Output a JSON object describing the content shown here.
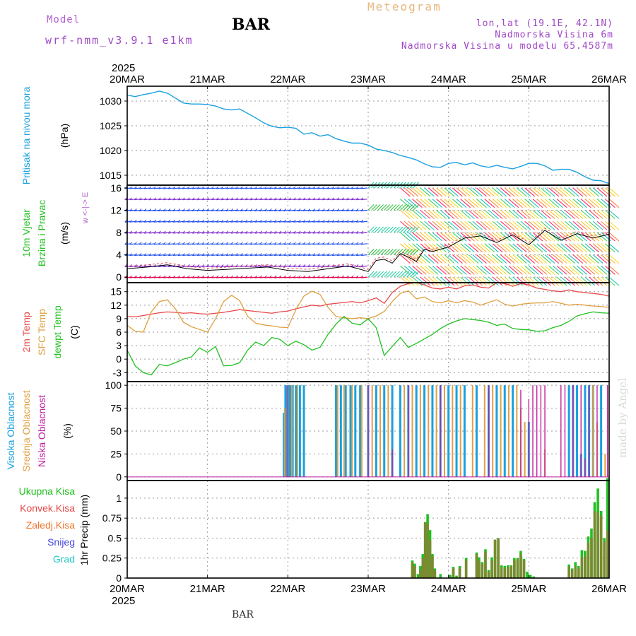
{
  "header": {
    "model_label": "Model",
    "model_name": "wrf-nmm_v3.9.1  e1km",
    "station": "BAR",
    "product": "Meteogram",
    "coords": "lon,lat (19.1E, 42.1N)",
    "elevation": "Nadmorska Visina 6m",
    "model_elevation": "Nadmorska Visina u modelu 65.4587m"
  },
  "footer_station": "BAR",
  "watermark": "made by Angel",
  "time_axis": {
    "year": "2025",
    "labels": [
      "20MAR",
      "21MAR",
      "22MAR",
      "23MAR",
      "24MAR",
      "25MAR",
      "26MAR"
    ]
  },
  "colors": {
    "pressure": "#1aa0e0",
    "wind_black": "#000000",
    "temp2m": "#e84848",
    "sfc_temp": "#e0a040",
    "dewpt": "#20c020",
    "cloud_high": "#1aa0e0",
    "cloud_mid": "#e0a040",
    "cloud_low": "#c020a0",
    "rain_total": "#20c020",
    "rain_conv": "#e84848",
    "rain_frz": "#f07830",
    "snow": "#4848e0",
    "hail": "#20c8c0"
  },
  "chart_data": [
    {
      "type": "line",
      "name": "pressure",
      "ylabel_main": "Pritisak na nivou mora",
      "ylabel_unit": "(hPa)",
      "ylim": [
        1013,
        1033
      ],
      "yticks": [
        1015,
        1020,
        1025,
        1030
      ],
      "x_days": [
        0,
        0.1,
        0.2,
        0.3,
        0.4,
        0.5,
        0.6,
        0.7,
        0.8,
        0.9,
        1.0,
        1.1,
        1.2,
        1.3,
        1.4,
        1.5,
        1.6,
        1.7,
        1.8,
        1.9,
        2.0,
        2.1,
        2.2,
        2.3,
        2.4,
        2.5,
        2.6,
        2.7,
        2.8,
        2.9,
        3.0,
        3.1,
        3.2,
        3.3,
        3.4,
        3.5,
        3.6,
        3.7,
        3.8,
        3.9,
        4.0,
        4.1,
        4.2,
        4.3,
        4.4,
        4.5,
        4.6,
        4.7,
        4.8,
        4.9,
        5.0,
        5.1,
        5.2,
        5.3,
        5.4,
        5.5,
        5.6,
        5.7,
        5.8,
        5.9,
        6.0
      ],
      "values": [
        1031.2,
        1030.9,
        1031.3,
        1031.6,
        1032.0,
        1031.6,
        1030.6,
        1029.6,
        1029.4,
        1029.4,
        1029.3,
        1029.0,
        1028.4,
        1028.2,
        1028.4,
        1027.5,
        1026.6,
        1025.6,
        1024.9,
        1024.6,
        1024.7,
        1024.5,
        1023.3,
        1023.6,
        1022.9,
        1023.2,
        1022.4,
        1021.9,
        1021.5,
        1021.5,
        1021.1,
        1020.3,
        1020.0,
        1019.6,
        1019.0,
        1018.6,
        1018.1,
        1017.3,
        1016.7,
        1016.6,
        1017.4,
        1017.6,
        1017.1,
        1017.5,
        1016.9,
        1016.6,
        1017.0,
        1016.6,
        1016.3,
        1016.8,
        1017.4,
        1017.4,
        1016.9,
        1016.0,
        1016.2,
        1016.2,
        1015.6,
        1014.7,
        1014.0,
        1013.9,
        1013.3
      ]
    },
    {
      "type": "line",
      "name": "wind",
      "ylabel_main": "10m Vjetar",
      "ylabel_sub": "Brzina i Pravac",
      "ylabel_unit": "(m/s)",
      "compass": "w <-|-> E",
      "ylim": [
        -1,
        16.5
      ],
      "yticks": [
        0,
        4,
        8,
        12,
        16
      ],
      "x_days": [
        0,
        0.25,
        0.5,
        0.75,
        1.0,
        1.25,
        1.5,
        1.75,
        2.0,
        2.25,
        2.5,
        2.75,
        3.0,
        3.1,
        3.2,
        3.3,
        3.4,
        3.5,
        3.6,
        3.7,
        3.8,
        4.0,
        4.2,
        4.4,
        4.6,
        4.8,
        5.0,
        5.2,
        5.4,
        5.6,
        5.8,
        6.0
      ],
      "values": [
        1.5,
        1.8,
        2.2,
        1.5,
        1.2,
        1.4,
        1.6,
        1.8,
        1.2,
        1.0,
        1.5,
        2.0,
        1.0,
        3.0,
        3.2,
        2.5,
        4.2,
        3.6,
        2.8,
        5.0,
        4.6,
        5.4,
        7.0,
        7.4,
        6.2,
        7.6,
        5.8,
        8.4,
        6.6,
        7.8,
        7.0,
        7.7
      ],
      "barb_rows": [
        0,
        2,
        4,
        6,
        8,
        10,
        12,
        14,
        16
      ]
    },
    {
      "type": "line",
      "name": "temperature",
      "ylabel_1": "2m Temp",
      "ylabel_2": "SFC Temp",
      "ylabel_3": "dewpt Temp",
      "ylabel_unit": "(C)",
      "ylim": [
        -5,
        17
      ],
      "yticks": [
        -3,
        0,
        3,
        6,
        9,
        12,
        15
      ],
      "x_days": [
        0,
        0.1,
        0.2,
        0.3,
        0.4,
        0.5,
        0.6,
        0.7,
        0.8,
        0.9,
        1.0,
        1.1,
        1.2,
        1.3,
        1.4,
        1.5,
        1.6,
        1.7,
        1.8,
        1.9,
        2.0,
        2.1,
        2.2,
        2.3,
        2.4,
        2.5,
        2.6,
        2.7,
        2.8,
        2.9,
        3.0,
        3.1,
        3.2,
        3.3,
        3.4,
        3.5,
        3.6,
        3.7,
        3.8,
        3.9,
        4.0,
        4.1,
        4.2,
        4.3,
        4.4,
        4.5,
        4.6,
        4.7,
        4.8,
        4.9,
        5.0,
        5.1,
        5.2,
        5.3,
        5.4,
        5.5,
        5.6,
        5.7,
        5.8,
        5.9,
        6.0
      ],
      "series": [
        {
          "name": "2m Temp",
          "values": [
            9.5,
            9.4,
            9.7,
            10.0,
            10.3,
            10.5,
            10.4,
            10.2,
            10.3,
            10.1,
            10.0,
            10.2,
            10.4,
            10.7,
            11.0,
            10.8,
            10.6,
            10.4,
            10.2,
            10.5,
            10.7,
            11.2,
            11.6,
            12.0,
            11.8,
            12.2,
            12.4,
            12.6,
            12.8,
            12.5,
            13.0,
            13.6,
            12.4,
            14.8,
            16.2,
            16.8,
            17.0,
            16.5,
            15.8,
            15.6,
            16.0,
            15.6,
            16.3,
            16.5,
            16.0,
            15.8,
            17.0,
            16.8,
            16.2,
            16.8,
            16.5,
            15.8,
            15.5,
            15.2,
            15.0,
            15.4,
            15.0,
            14.8,
            14.6,
            14.4,
            14.0
          ]
        },
        {
          "name": "SFC Temp",
          "values": [
            7.5,
            6.2,
            6.0,
            10.5,
            12.8,
            13.2,
            11.2,
            8.2,
            7.2,
            6.6,
            6.0,
            9.0,
            12.8,
            14.2,
            13.0,
            9.5,
            8.0,
            7.6,
            7.4,
            7.1,
            7.0,
            11.0,
            14.0,
            15.1,
            14.4,
            11.5,
            9.5,
            9.2,
            9.0,
            9.2,
            9.0,
            9.6,
            10.6,
            12.8,
            14.6,
            15.2,
            13.4,
            13.8,
            12.8,
            12.5,
            13.0,
            12.5,
            13.0,
            12.7,
            12.0,
            12.6,
            13.2,
            12.2,
            11.8,
            12.2,
            12.4,
            12.5,
            12.5,
            12.8,
            12.4,
            12.0,
            12.2,
            12.0,
            11.8,
            11.7,
            11.5
          ]
        },
        {
          "name": "dewpt Temp",
          "values": [
            2.0,
            -1.5,
            -3.0,
            -3.5,
            -1.2,
            -1.5,
            -0.8,
            0.0,
            0.5,
            2.5,
            1.5,
            2.8,
            -1.5,
            -1.4,
            -0.8,
            2.0,
            3.8,
            3.0,
            4.8,
            4.4,
            3.0,
            4.0,
            3.2,
            2.0,
            2.6,
            5.5,
            7.8,
            9.5,
            8.0,
            7.6,
            9.0,
            7.0,
            0.8,
            2.8,
            4.8,
            2.6,
            3.5,
            4.5,
            5.5,
            6.8,
            7.8,
            8.5,
            9.0,
            8.8,
            8.6,
            8.2,
            7.5,
            7.8,
            6.8,
            6.6,
            6.5,
            6.2,
            6.3,
            7.0,
            7.5,
            8.4,
            9.6,
            10.1,
            10.5,
            10.3,
            10.2
          ]
        }
      ]
    },
    {
      "type": "bar",
      "name": "cloud_cover",
      "ylabel_1": "Visoka Oblacnost",
      "ylabel_2": "Srednja Oblacnost",
      "ylabel_3": "Niska Oblacnost",
      "ylabel_unit": "(%)",
      "ylim": [
        -4,
        104
      ],
      "yticks": [
        0,
        25,
        50,
        75,
        100
      ],
      "series": [
        {
          "name": "Visoka Oblacnost",
          "x_days": [
            1.95,
            1.97,
            1.99,
            2.01,
            2.03,
            2.06,
            2.1,
            2.15,
            2.2,
            2.6,
            2.66,
            2.72,
            2.78,
            2.84,
            2.9,
            3.0,
            3.1,
            3.2,
            3.3,
            3.4,
            3.5,
            3.6,
            3.7,
            3.8,
            3.9,
            4.0,
            4.1,
            4.2,
            4.35,
            4.5,
            4.6,
            4.7,
            4.8,
            5.0,
            5.5,
            5.55,
            5.6,
            5.65,
            5.7,
            5.75,
            5.8,
            5.9
          ],
          "values": [
            70,
            100,
            100,
            100,
            100,
            100,
            100,
            100,
            100,
            100,
            100,
            100,
            100,
            100,
            100,
            100,
            100,
            100,
            100,
            100,
            100,
            100,
            100,
            100,
            100,
            100,
            100,
            100,
            100,
            100,
            100,
            100,
            100,
            60,
            100,
            100,
            100,
            25,
            100,
            100,
            100,
            100
          ]
        },
        {
          "name": "Srednja Oblacnost",
          "x_days": [
            1.96,
            2.0,
            2.05,
            2.12,
            2.62,
            2.7,
            2.8,
            2.92,
            3.05,
            3.15,
            3.25,
            3.45,
            3.55,
            3.65,
            3.75,
            3.85,
            3.95,
            4.05,
            4.15,
            4.3,
            4.45,
            4.55,
            4.65,
            4.75,
            4.85,
            4.9,
            4.95,
            5.2,
            5.8,
            5.85,
            5.95
          ],
          "values": [
            75,
            100,
            100,
            100,
            100,
            100,
            100,
            100,
            100,
            100,
            100,
            100,
            100,
            100,
            100,
            100,
            100,
            100,
            100,
            100,
            100,
            100,
            100,
            100,
            100,
            75,
            60,
            30,
            100,
            60,
            25
          ]
        },
        {
          "name": "Niska Oblacnost",
          "x_days": [
            2.0,
            3.0,
            3.3,
            3.5,
            3.9,
            4.5,
            4.9,
            5.0,
            5.05,
            5.1,
            5.15,
            5.2,
            5.3,
            5.4,
            5.45,
            5.55,
            5.65,
            5.7,
            5.75,
            5.85,
            5.98
          ],
          "values": [
            100,
            100,
            30,
            100,
            100,
            100,
            95,
            85,
            100,
            100,
            100,
            100,
            0,
            100,
            100,
            100,
            100,
            20,
            100,
            100,
            100
          ]
        }
      ]
    },
    {
      "type": "bar",
      "name": "precipitation",
      "ylabel_unit": "1hr Precip (mm)",
      "legend": [
        "Ukupna Kisa",
        "Konvek.Kisa",
        "Zaledj.Kisa",
        "Snijeg",
        "Grad"
      ],
      "ylim": [
        0,
        1.22
      ],
      "yticks": [
        0,
        0.25,
        0.5,
        0.75,
        1
      ],
      "ytick_labels": [
        "0",
        "0.25",
        "0.5",
        "0.75",
        "1"
      ],
      "x_days": [
        3.55,
        3.58,
        3.62,
        3.65,
        3.68,
        3.71,
        3.74,
        3.77,
        3.8,
        3.83,
        3.9,
        4.02,
        4.06,
        4.1,
        4.14,
        4.22,
        4.35,
        4.38,
        4.42,
        4.46,
        4.5,
        4.54,
        4.58,
        4.62,
        4.66,
        4.7,
        4.74,
        4.78,
        4.82,
        4.86,
        4.9,
        4.94,
        4.98,
        5.02,
        5.06,
        5.5,
        5.54,
        5.58,
        5.62,
        5.66,
        5.7,
        5.74,
        5.78,
        5.82,
        5.86,
        5.9,
        5.94,
        5.98
      ],
      "total": [
        0.22,
        0.18,
        0.05,
        0.15,
        0.3,
        0.7,
        0.8,
        0.6,
        0.3,
        0.12,
        0.05,
        0.04,
        0.14,
        0.03,
        0.15,
        0.25,
        0.32,
        0.26,
        0.2,
        0.36,
        0.1,
        0.26,
        0.48,
        0.5,
        0.16,
        0.15,
        0.16,
        0.16,
        0.25,
        0.25,
        0.34,
        0.24,
        0.08,
        0.04,
        0.02,
        0.17,
        0.12,
        0.2,
        0.15,
        0.35,
        0.34,
        0.52,
        0.62,
        0.95,
        1.12,
        0.84,
        0.5,
        1.25
      ],
      "convective": [
        0.2,
        0.15,
        0.0,
        0.1,
        0.25,
        0.7,
        0.68,
        0.48,
        0.28,
        0.1,
        0.0,
        0.0,
        0.12,
        0.0,
        0.13,
        0.22,
        0.3,
        0.22,
        0.18,
        0.33,
        0.08,
        0.22,
        0.48,
        0.5,
        0.14,
        0.12,
        0.14,
        0.15,
        0.22,
        0.24,
        0.3,
        0.22,
        0.0,
        0.0,
        0.0,
        0.14,
        0.1,
        0.15,
        0.12,
        0.26,
        0.28,
        0.44,
        0.5,
        0.84,
        0.82,
        0.78,
        0.46,
        0.6
      ]
    }
  ]
}
